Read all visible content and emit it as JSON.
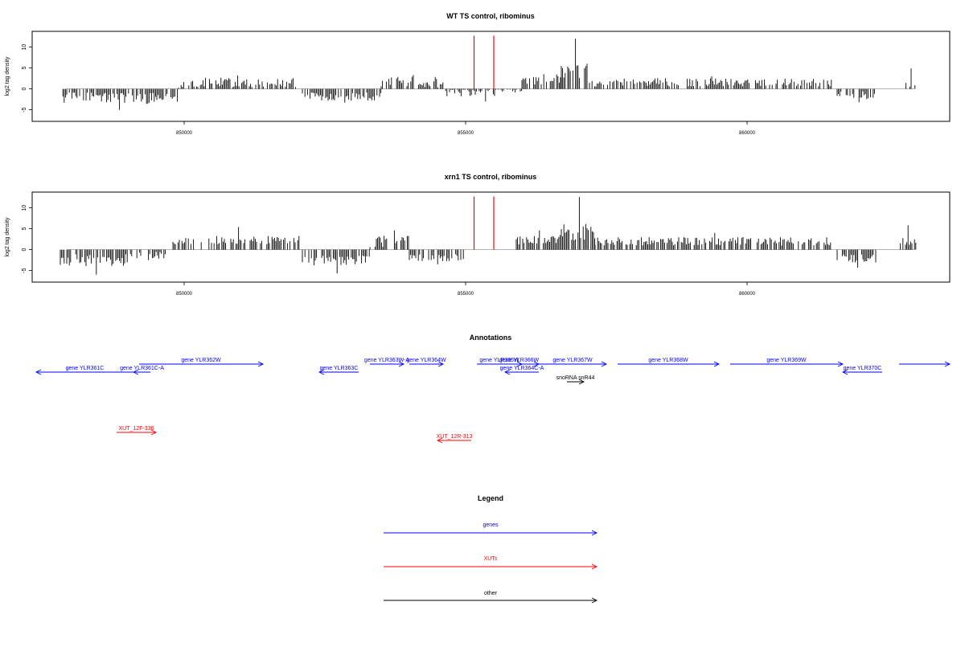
{
  "panels": [
    {
      "title": "WT TS control, ribominus",
      "ylabel": "log2 tag density",
      "yticks": [
        "-5",
        "0",
        "5",
        "10"
      ]
    },
    {
      "title": "xrn1 TS control, ribominus",
      "ylabel": "log2 tag density",
      "yticks": [
        "-5",
        "0",
        "5",
        "10"
      ]
    }
  ],
  "annotations_title": "Annotations",
  "legend": {
    "title": "Legend",
    "items": [
      {
        "label": "genes",
        "color": "#0000ff"
      },
      {
        "label": "XUTs",
        "color": "#ff0000"
      },
      {
        "label": "other",
        "color": "#000000"
      }
    ]
  },
  "colors": {
    "gene": "#0000ff",
    "xut": "#ff0000",
    "other": "#000000",
    "peak": "#ff0000",
    "bar": "#000000"
  },
  "chart_data": [
    {
      "type": "bar",
      "title": "WT TS control, ribominus",
      "ylabel": "log2 tag density",
      "xlim": [
        847300,
        863600
      ],
      "ylim": [
        -7,
        13
      ],
      "xticks": [
        850000,
        855000,
        860000
      ],
      "yticks": [
        -5,
        0,
        5,
        10
      ],
      "grid": false,
      "segments": [
        {
          "start": 847800,
          "end": 849900,
          "mean": -2.2,
          "amp": 1.4,
          "max": -5
        },
        {
          "start": 849900,
          "end": 852000,
          "mean": 1.5,
          "amp": 1.2,
          "max": 3.2
        },
        {
          "start": 852100,
          "end": 853500,
          "mean": -1.8,
          "amp": 1.0,
          "max": -3.3
        },
        {
          "start": 853500,
          "end": 854600,
          "mean": 1.6,
          "amp": 1.3,
          "max": 3.3
        },
        {
          "start": 854600,
          "end": 856000,
          "mean": -0.8,
          "amp": 1.0,
          "max": -3
        },
        {
          "start": 856000,
          "end": 856700,
          "mean": 2.2,
          "amp": 1.3,
          "max": 3.5
        },
        {
          "start": 856700,
          "end": 857200,
          "mean": 4.0,
          "amp": 2.0,
          "max": 12
        },
        {
          "start": 857200,
          "end": 861500,
          "mean": 1.6,
          "amp": 1.0,
          "max": 3.0
        },
        {
          "start": 861600,
          "end": 862300,
          "mean": -1.6,
          "amp": 1.0,
          "max": -3.2
        },
        {
          "start": 862800,
          "end": 863000,
          "mean": 2.0,
          "amp": 1.5,
          "max": 4.9
        }
      ],
      "peaks": [
        {
          "x": 855150,
          "y": 12.7
        },
        {
          "x": 855500,
          "y": 12.7
        }
      ]
    },
    {
      "type": "bar",
      "title": "xrn1 TS control, ribominus",
      "ylabel": "log2 tag density",
      "xlim": [
        847300,
        863600
      ],
      "ylim": [
        -7,
        13
      ],
      "xticks": [
        850000,
        855000,
        860000
      ],
      "yticks": [
        -5,
        0,
        5,
        10
      ],
      "grid": false,
      "segments": [
        {
          "start": 847800,
          "end": 849000,
          "mean": -2.6,
          "amp": 1.5,
          "max": -6
        },
        {
          "start": 849000,
          "end": 849700,
          "mean": -1.4,
          "amp": 1.0,
          "max": -2.5
        },
        {
          "start": 849800,
          "end": 852100,
          "mean": 2.3,
          "amp": 1.0,
          "max": 5.4
        },
        {
          "start": 852100,
          "end": 853300,
          "mean": -2.5,
          "amp": 1.3,
          "max": -5.7
        },
        {
          "start": 853300,
          "end": 854000,
          "mean": 2.0,
          "amp": 1.5,
          "max": 4.6
        },
        {
          "start": 854000,
          "end": 855000,
          "mean": -2.0,
          "amp": 1.0,
          "max": -3.5
        },
        {
          "start": 855900,
          "end": 856700,
          "mean": 2.2,
          "amp": 1.3,
          "max": 4.6
        },
        {
          "start": 856700,
          "end": 857300,
          "mean": 4.0,
          "amp": 2.2,
          "max": 12.6
        },
        {
          "start": 857300,
          "end": 861500,
          "mean": 2.0,
          "amp": 1.0,
          "max": 4.0
        },
        {
          "start": 861600,
          "end": 862300,
          "mean": -2.2,
          "amp": 1.2,
          "max": -4.3
        },
        {
          "start": 862700,
          "end": 863000,
          "mean": 2.4,
          "amp": 1.5,
          "max": 5.8
        }
      ],
      "peaks": [
        {
          "x": 855150,
          "y": 12.7
        },
        {
          "x": 855500,
          "y": 12.7
        }
      ]
    }
  ],
  "features": [
    {
      "label": "gene YLR361C",
      "start": 847300,
      "end": 849100,
      "strand": "-",
      "type": "gene",
      "row": 1
    },
    {
      "label": "gene YLR361C-A",
      "start": 849100,
      "end": 849400,
      "strand": "-",
      "type": "gene",
      "row": 1
    },
    {
      "label": "gene YLR362W",
      "start": 849200,
      "end": 851400,
      "strand": "+",
      "type": "gene",
      "row": 0
    },
    {
      "label": "gene YLR363C",
      "start": 852400,
      "end": 853100,
      "strand": "-",
      "type": "gene",
      "row": 1
    },
    {
      "label": "gene YLR363W-A",
      "start": 853300,
      "end": 853900,
      "strand": "+",
      "type": "gene",
      "row": 0
    },
    {
      "label": "gene YLR364W",
      "start": 854000,
      "end": 854600,
      "strand": "+",
      "type": "gene",
      "row": 0
    },
    {
      "label": "gene YLR365W",
      "start": 855200,
      "end": 856000,
      "strand": "+",
      "type": "gene",
      "row": 0
    },
    {
      "label": "gene YLR366W",
      "start": 855600,
      "end": 856300,
      "strand": "+",
      "type": "gene",
      "row": 0
    },
    {
      "label": "gene YLR364C-A",
      "start": 855700,
      "end": 856300,
      "strand": "-",
      "type": "gene",
      "row": 1
    },
    {
      "label": "gene YLR367W",
      "start": 856300,
      "end": 857500,
      "strand": "+",
      "type": "gene",
      "row": 0
    },
    {
      "label": "snoRNA snR44",
      "start": 856800,
      "end": 857100,
      "strand": "+",
      "type": "other",
      "row": 2
    },
    {
      "label": "gene YLR368W",
      "start": 857700,
      "end": 859500,
      "strand": "+",
      "type": "gene",
      "row": 0
    },
    {
      "label": "gene YLR369W",
      "start": 859700,
      "end": 861700,
      "strand": "+",
      "type": "gene",
      "row": 0
    },
    {
      "label": "gene YLR370C",
      "start": 861700,
      "end": 862400,
      "strand": "-",
      "type": "gene",
      "row": 1
    },
    {
      "label": "",
      "start": 862700,
      "end": 863600,
      "strand": "+",
      "type": "gene",
      "row": 0
    },
    {
      "label": "XUT_12F-336",
      "start": 848800,
      "end": 849500,
      "strand": "+",
      "type": "xut",
      "row": 3
    },
    {
      "label": "XUT_12R-313",
      "start": 854500,
      "end": 855100,
      "strand": "-",
      "type": "xut",
      "row": 4
    }
  ]
}
